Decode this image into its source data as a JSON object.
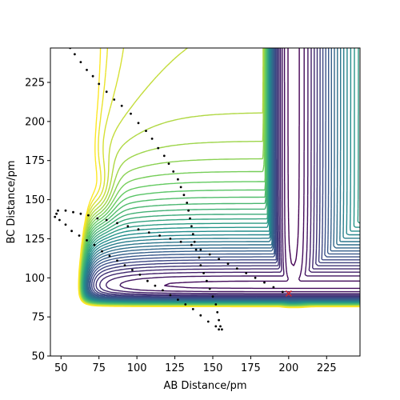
{
  "chart_data": {
    "type": "contour",
    "xlabel": "AB Distance/pm",
    "ylabel": "BC Distance/pm",
    "xlim": [
      43,
      247
    ],
    "ylim": [
      50,
      247
    ],
    "xticks": [
      50,
      75,
      100,
      125,
      150,
      175,
      200,
      225
    ],
    "yticks": [
      50,
      75,
      100,
      125,
      150,
      175,
      200,
      225
    ],
    "colormap": [
      "#440154",
      "#3b528b",
      "#21918c",
      "#5ec962",
      "#fde725"
    ],
    "potential": {
      "minimum_x": 203,
      "minimum_y": 92,
      "asymptote_x": 132,
      "asymptote_y": 139,
      "barrier_x": 75,
      "barrier_y": 153,
      "repulsive_wall_x": 48,
      "repulsive_wall_y": 68
    },
    "marker": {
      "x": 200,
      "y": 90,
      "symbol": "x",
      "color": "#d62728"
    },
    "trajectories": [
      {
        "name": "",
        "color": "#000000",
        "points": [
          [
            56,
            247
          ],
          [
            59,
            243
          ],
          [
            63,
            238
          ],
          [
            67,
            233
          ],
          [
            71,
            229
          ],
          [
            75,
            224
          ],
          [
            80,
            219
          ],
          [
            85,
            214
          ],
          [
            90,
            210
          ],
          [
            96,
            205
          ],
          [
            101,
            199
          ],
          [
            106,
            194
          ],
          [
            110,
            189
          ],
          [
            114,
            183
          ],
          [
            118,
            178
          ],
          [
            121,
            173
          ],
          [
            124,
            168
          ],
          [
            127,
            163
          ],
          [
            129,
            158
          ],
          [
            131,
            153
          ],
          [
            133,
            148
          ],
          [
            134,
            143
          ],
          [
            135,
            138
          ],
          [
            136,
            133
          ],
          [
            137,
            128
          ],
          [
            138,
            123
          ],
          [
            139,
            118
          ],
          [
            141,
            113
          ],
          [
            142,
            108
          ],
          [
            144,
            103
          ],
          [
            146,
            98
          ],
          [
            148,
            93
          ],
          [
            150,
            88
          ],
          [
            152,
            83
          ],
          [
            153,
            78
          ],
          [
            154,
            73
          ],
          [
            155,
            69
          ],
          [
            154,
            67
          ]
        ]
      },
      {
        "name": "",
        "color": "#000000",
        "points": [
          [
            46,
            139
          ],
          [
            48,
            143
          ],
          [
            53,
            143
          ],
          [
            58,
            142
          ],
          [
            63,
            141
          ],
          [
            68,
            140
          ],
          [
            74,
            138
          ],
          [
            80,
            137
          ],
          [
            87,
            135
          ],
          [
            94,
            133
          ],
          [
            101,
            131
          ],
          [
            108,
            129
          ],
          [
            115,
            127
          ],
          [
            122,
            125
          ],
          [
            129,
            123
          ],
          [
            136,
            121
          ],
          [
            142,
            118
          ],
          [
            148,
            115
          ],
          [
            154,
            112
          ],
          [
            160,
            109
          ],
          [
            166,
            106
          ],
          [
            172,
            103
          ],
          [
            178,
            100
          ],
          [
            184,
            97
          ],
          [
            190,
            94
          ],
          [
            196,
            91
          ]
        ]
      },
      {
        "name": "",
        "color": "#000000",
        "points": [
          [
            47,
            141
          ],
          [
            49,
            137
          ],
          [
            53,
            134
          ],
          [
            57,
            130
          ],
          [
            62,
            127
          ],
          [
            67,
            124
          ],
          [
            72,
            121
          ],
          [
            77,
            117
          ],
          [
            82,
            114
          ],
          [
            87,
            111
          ],
          [
            92,
            108
          ],
          [
            97,
            105
          ],
          [
            102,
            102
          ],
          [
            107,
            98
          ],
          [
            112,
            95
          ],
          [
            117,
            92
          ],
          [
            122,
            89
          ],
          [
            127,
            86
          ],
          [
            132,
            83
          ],
          [
            137,
            80
          ],
          [
            142,
            76
          ],
          [
            147,
            72
          ],
          [
            152,
            69
          ],
          [
            156,
            67
          ]
        ]
      }
    ]
  }
}
